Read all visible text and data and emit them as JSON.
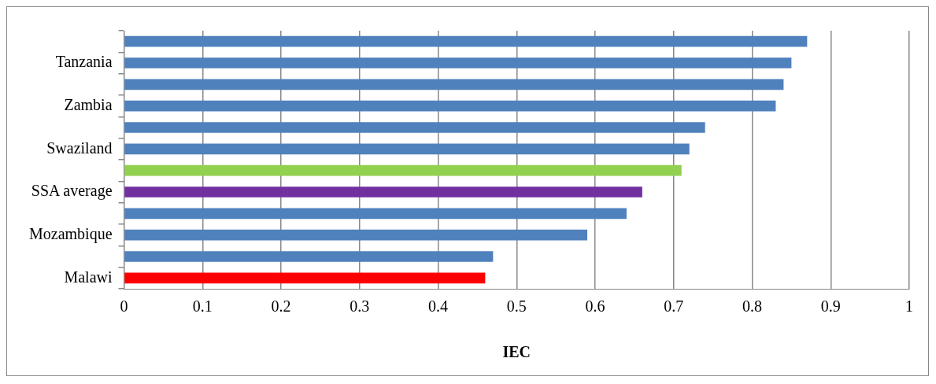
{
  "chart_data": {
    "type": "bar",
    "orientation": "horizontal",
    "xlabel": "IEC",
    "categories": [
      null,
      "Tanzania",
      null,
      "Zambia",
      null,
      "Swaziland",
      null,
      "SSA average",
      null,
      "Mozambique",
      null,
      "Malawi"
    ],
    "values": [
      0.87,
      0.85,
      0.84,
      0.83,
      0.74,
      0.72,
      0.71,
      0.66,
      0.64,
      0.59,
      0.47,
      0.46
    ],
    "colors": [
      "#4f81bd",
      "#4f81bd",
      "#4f81bd",
      "#4f81bd",
      "#4f81bd",
      "#4f81bd",
      "#92d050",
      "#7030a0",
      "#4f81bd",
      "#4f81bd",
      "#4f81bd",
      "#ff0000"
    ],
    "xlim": [
      0,
      1
    ],
    "xticks": [
      0,
      0.1,
      0.2,
      0.3,
      0.4,
      0.5,
      0.6,
      0.7,
      0.8,
      0.9,
      1
    ],
    "grid": "x",
    "legend": false
  }
}
